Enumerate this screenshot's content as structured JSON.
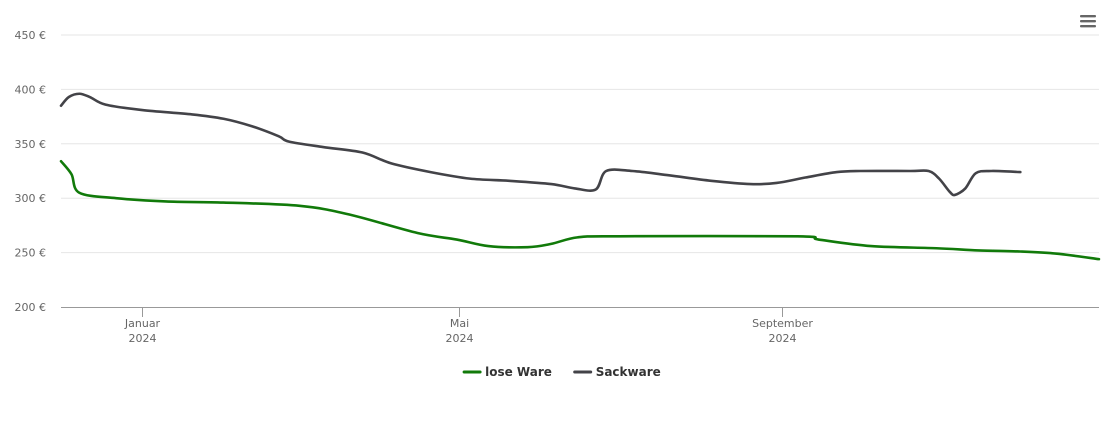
{
  "chart_data": {
    "type": "line",
    "title": "",
    "xlabel": "",
    "ylabel": "",
    "x_axis": {
      "type": "datetime",
      "range": [
        "2023-12-01",
        "2024-12-31"
      ],
      "ticks": [
        {
          "date": "2024-01-01",
          "label": "Januar",
          "sublabel": "2024"
        },
        {
          "date": "2024-05-01",
          "label": "Mai",
          "sublabel": "2024"
        },
        {
          "date": "2024-09-01",
          "label": "September",
          "sublabel": "2024"
        }
      ]
    },
    "y_axis": {
      "ylim": [
        200,
        450
      ],
      "ticks": [
        {
          "value": 200,
          "label": "200 €"
        },
        {
          "value": 250,
          "label": "250 €"
        },
        {
          "value": 300,
          "label": "300 €"
        },
        {
          "value": 350,
          "label": "350 €"
        },
        {
          "value": 400,
          "label": "400 €"
        },
        {
          "value": 450,
          "label": "450 €"
        }
      ]
    },
    "grid": true,
    "legend_position": "bottom-center",
    "series": [
      {
        "name": "lose Ware",
        "color": "#117a0a",
        "points": [
          [
            "2023-12-01",
            334
          ],
          [
            "2023-12-05",
            322
          ],
          [
            "2023-12-08",
            305
          ],
          [
            "2023-12-22",
            300
          ],
          [
            "2024-01-10",
            297
          ],
          [
            "2024-02-01",
            296
          ],
          [
            "2024-03-01",
            293
          ],
          [
            "2024-03-20",
            285
          ],
          [
            "2024-04-15",
            268
          ],
          [
            "2024-04-30",
            262
          ],
          [
            "2024-05-12",
            256
          ],
          [
            "2024-05-27",
            255
          ],
          [
            "2024-06-05",
            258
          ],
          [
            "2024-06-15",
            264
          ],
          [
            "2024-07-01",
            265
          ],
          [
            "2024-09-07",
            265
          ],
          [
            "2024-09-15",
            262
          ],
          [
            "2024-10-05",
            256
          ],
          [
            "2024-10-30",
            254
          ],
          [
            "2024-11-15",
            252
          ],
          [
            "2024-12-01",
            251
          ],
          [
            "2024-12-15",
            249
          ],
          [
            "2024-12-31",
            244
          ]
        ]
      },
      {
        "name": "Sackware",
        "color": "#434348",
        "points": [
          [
            "2023-12-01",
            385
          ],
          [
            "2023-12-04",
            393
          ],
          [
            "2023-12-08",
            396
          ],
          [
            "2023-12-12",
            393
          ],
          [
            "2023-12-18",
            386
          ],
          [
            "2024-01-01",
            381
          ],
          [
            "2024-01-20",
            377
          ],
          [
            "2024-02-01",
            373
          ],
          [
            "2024-02-12",
            366
          ],
          [
            "2024-02-22",
            357
          ],
          [
            "2024-02-26",
            352
          ],
          [
            "2024-03-10",
            347
          ],
          [
            "2024-03-25",
            342
          ],
          [
            "2024-04-05",
            332
          ],
          [
            "2024-04-20",
            324
          ],
          [
            "2024-05-05",
            318
          ],
          [
            "2024-05-20",
            316
          ],
          [
            "2024-06-05",
            313
          ],
          [
            "2024-06-14",
            309
          ],
          [
            "2024-06-22",
            308
          ],
          [
            "2024-06-26",
            325
          ],
          [
            "2024-07-06",
            325
          ],
          [
            "2024-07-20",
            321
          ],
          [
            "2024-08-05",
            316
          ],
          [
            "2024-08-20",
            313
          ],
          [
            "2024-08-30",
            314
          ],
          [
            "2024-09-10",
            319
          ],
          [
            "2024-09-22",
            324
          ],
          [
            "2024-10-01",
            325
          ],
          [
            "2024-10-20",
            325
          ],
          [
            "2024-10-27",
            325
          ],
          [
            "2024-10-31",
            318
          ],
          [
            "2024-11-04",
            306
          ],
          [
            "2024-11-06",
            303
          ],
          [
            "2024-11-10",
            309
          ],
          [
            "2024-11-14",
            323
          ],
          [
            "2024-11-20",
            325
          ],
          [
            "2024-12-01",
            324
          ]
        ]
      }
    ]
  },
  "toolbar": {
    "menu_icon": "hamburger-menu-icon"
  },
  "colors": {
    "background": "#ffffff",
    "gridline": "#e6e6e6",
    "axis_line": "#999999",
    "tick_text": "#666666"
  }
}
